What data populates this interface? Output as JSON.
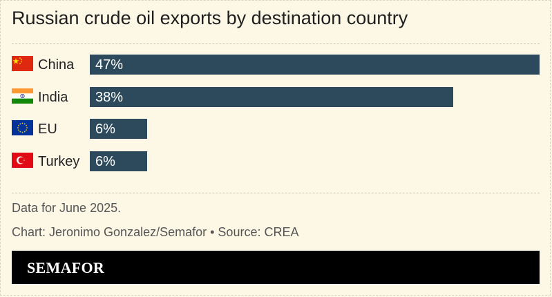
{
  "title": "Russian crude oil exports by destination country",
  "chart_data": {
    "type": "bar",
    "orientation": "horizontal",
    "categories": [
      "China",
      "India",
      "EU",
      "Turkey"
    ],
    "values": [
      47,
      38,
      6,
      6
    ],
    "value_labels": [
      "47%",
      "38%",
      "6%",
      "6%"
    ],
    "unit": "%",
    "title": "Russian crude oil exports by destination country",
    "xlim": [
      0,
      47
    ],
    "grid": false,
    "bar_color": "#2d4a5c"
  },
  "flags": [
    "china-flag-icon",
    "india-flag-icon",
    "eu-flag-icon",
    "turkey-flag-icon"
  ],
  "notes": {
    "data_note": "Data for June 2025.",
    "credit": "Chart: Jeronimo Gonzalez/Semafor • Source: CREA"
  },
  "brand": {
    "name": "SEMAFOR"
  },
  "colors": {
    "background": "#fdf8e6",
    "bar": "#2d4a5c",
    "brand_bar": "#000000"
  }
}
